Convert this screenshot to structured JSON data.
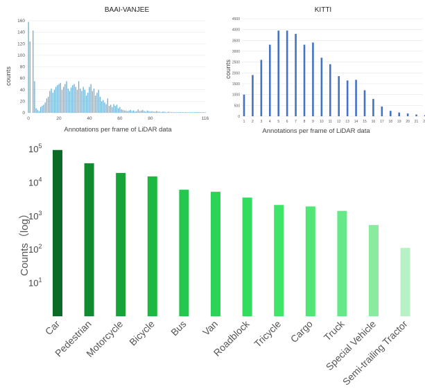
{
  "chart_data": [
    {
      "type": "bar",
      "title": "BAAI-VANJEE",
      "xlabel": "Annotations per frame of LiDAR data",
      "ylabel": "counts",
      "ylim": [
        0,
        160
      ],
      "yticks": [
        "0",
        "20",
        "40",
        "60",
        "80",
        "100",
        "120",
        "140",
        "160"
      ],
      "xticks": [
        "0",
        "20",
        "40",
        "60",
        "80",
        "116"
      ],
      "xlim": [
        0,
        116
      ],
      "bar_color": "#6aaed6",
      "values": [
        158,
        124,
        0,
        143,
        55,
        8,
        5,
        3,
        10,
        12,
        14,
        18,
        25,
        28,
        38,
        42,
        35,
        40,
        45,
        48,
        50,
        52,
        40,
        45,
        50,
        55,
        42,
        38,
        44,
        48,
        50,
        45,
        40,
        55,
        42,
        38,
        45,
        40,
        30,
        35,
        45,
        50,
        38,
        42,
        30,
        35,
        40,
        28,
        20,
        22,
        18,
        15,
        25,
        12,
        14,
        10,
        15,
        12,
        14,
        8,
        10,
        6,
        5,
        4,
        4,
        3,
        4,
        5,
        3,
        4,
        2,
        3,
        6,
        3,
        4,
        5,
        3,
        2,
        4,
        3,
        2,
        3,
        2,
        2,
        3,
        2,
        2,
        1,
        2,
        2,
        1,
        1,
        2,
        1,
        1,
        1,
        1,
        1,
        1,
        1,
        1,
        1,
        1,
        1,
        1,
        1,
        1,
        1,
        1,
        1,
        1,
        1,
        1,
        1,
        1,
        1,
        1
      ]
    },
    {
      "type": "bar",
      "title": "KITTI",
      "xlabel": "Annotations per frame of LiDAR data",
      "ylabel": "counts",
      "ylim": [
        0,
        4500
      ],
      "yticks": [
        "0",
        "500",
        "1000",
        "1500",
        "2000",
        "2500",
        "3000",
        "3500",
        "4000",
        "4500"
      ],
      "categories": [
        "1",
        "2",
        "3",
        "4",
        "5",
        "6",
        "7",
        "8",
        "9",
        "10",
        "11",
        "12",
        "13",
        "14",
        "15",
        "16",
        "17",
        "18",
        "19",
        "20",
        "21",
        "22"
      ],
      "values": [
        1000,
        1900,
        2600,
        3300,
        3950,
        3950,
        3800,
        3300,
        3400,
        2700,
        2400,
        1850,
        1650,
        1680,
        1200,
        800,
        450,
        250,
        170,
        130,
        80,
        50
      ],
      "bar_color": "#4472c4"
    },
    {
      "type": "bar",
      "title": "",
      "ylabel": "Counts（log）",
      "yscale": "log",
      "ylim": [
        1,
        100000
      ],
      "yticks": [
        {
          "base": "10",
          "exp": "5"
        },
        {
          "base": "10",
          "exp": "4"
        },
        {
          "base": "10",
          "exp": "3"
        },
        {
          "base": "10",
          "exp": "2"
        },
        {
          "base": "10",
          "exp": "1"
        }
      ],
      "categories": [
        "Car",
        "Pedestrian",
        "Motorcycle",
        "Bicycle",
        "Bus",
        "Van",
        "Roadblock",
        "Tricycle",
        "Cargo",
        "Truck",
        "Special Vehicle",
        "Semi-trailing Tractor"
      ],
      "values": [
        92000,
        37000,
        19000,
        15000,
        6000,
        5200,
        3500,
        2100,
        1900,
        1400,
        530,
        110
      ],
      "colors": [
        "#0b6b26",
        "#128a30",
        "#17a23a",
        "#1db842",
        "#24c84c",
        "#2bd456",
        "#34dc5e",
        "#40e468",
        "#52e676",
        "#66e888",
        "#8aeb9e",
        "#b8f2c4"
      ]
    }
  ]
}
